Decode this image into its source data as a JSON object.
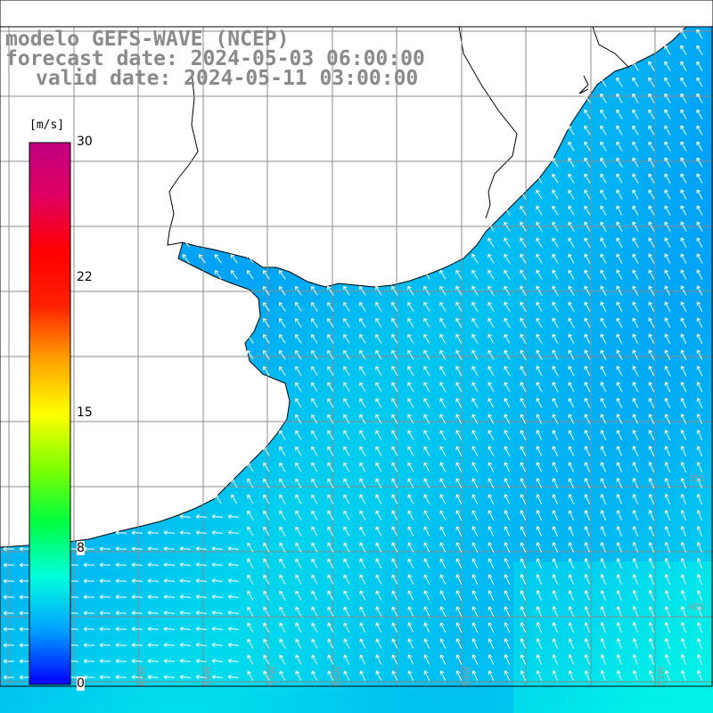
{
  "title": {
    "line1": "modelo GEFS-WAVE (NCEP)",
    "line2": "forecast date: 2024-05-03 06:00:00",
    "line3": "valid date: 2024-05-11 03:00:00"
  },
  "colorbar": {
    "unit": "[m/s]",
    "min": 0,
    "max": 30,
    "ticks": [
      "30",
      "22",
      "15",
      "8",
      "0"
    ],
    "tick_values": [
      30,
      22,
      15,
      8,
      0
    ],
    "colors": [
      "#0000ff",
      "#00a0ff",
      "#00ffdd",
      "#00ff40",
      "#80ff00",
      "#ffff00",
      "#ffa000",
      "#ff2000",
      "#ff0000",
      "#e00060",
      "#c00080"
    ]
  },
  "map": {
    "lat_labels": [
      "35S",
      "40S"
    ],
    "lon_labels": [
      "60W",
      "58W",
      "57W",
      "56W",
      "54W",
      "53W"
    ],
    "land_color": "#ffffff",
    "grid_color": "#8c8c8c"
  }
}
